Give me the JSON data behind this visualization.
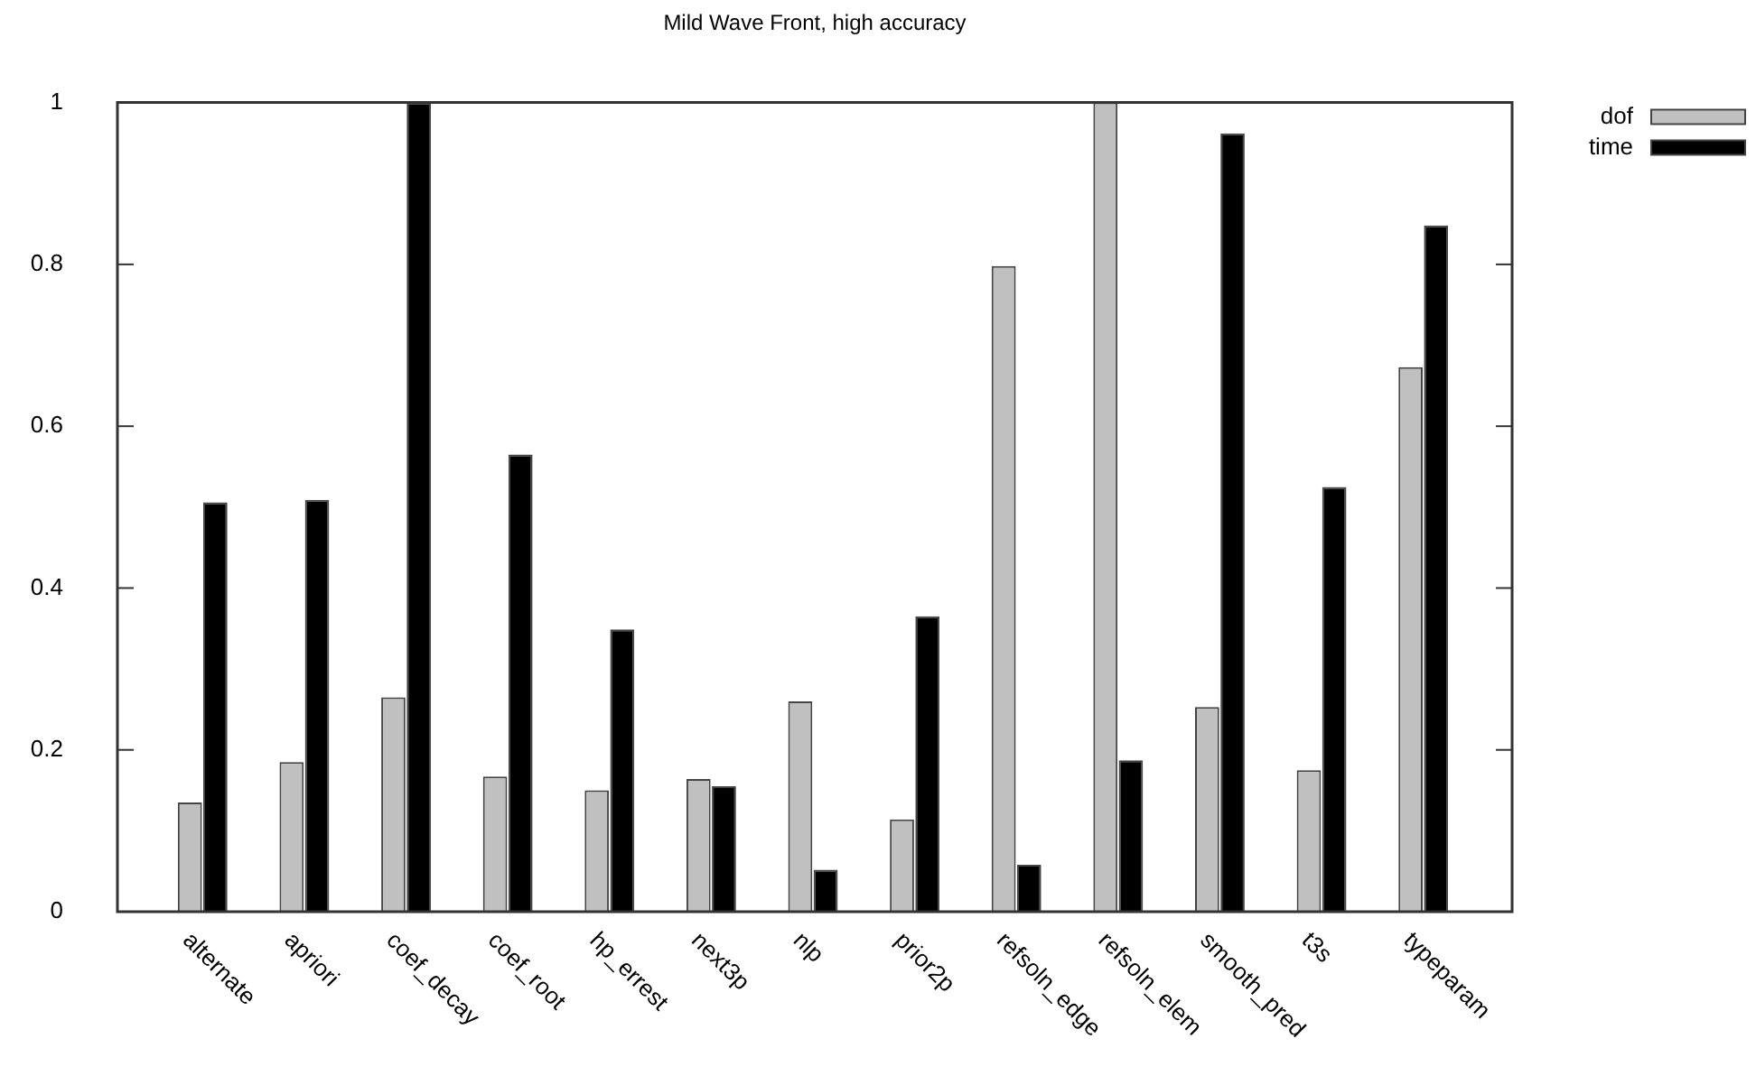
{
  "chart_data": {
    "type": "bar",
    "title": "Mild Wave Front, high accuracy",
    "categories": [
      "alternate",
      "apriori",
      "coef_decay",
      "coef_root",
      "hp_errest",
      "next3p",
      "nlp",
      "prior2p",
      "refsoln_edge",
      "refsoln_elem",
      "smooth_pred",
      "t3s",
      "typeparam"
    ],
    "series": [
      {
        "name": "dof",
        "color": "#c0c0c0",
        "values": [
          0.135,
          0.185,
          0.265,
          0.167,
          0.15,
          0.164,
          0.26,
          0.114,
          0.798,
          1,
          0.253,
          0.175,
          0.673
        ]
      },
      {
        "name": "time",
        "color": "#000000",
        "values": [
          0.506,
          0.509,
          1,
          0.565,
          0.349,
          0.155,
          0.052,
          0.365,
          0.058,
          0.187,
          0.962,
          0.525,
          0.848
        ]
      }
    ],
    "ylim": [
      0,
      1
    ],
    "yticks": [
      0,
      0.2,
      0.4,
      0.6,
      0.8,
      1
    ],
    "grid": false,
    "legend": "top right"
  }
}
